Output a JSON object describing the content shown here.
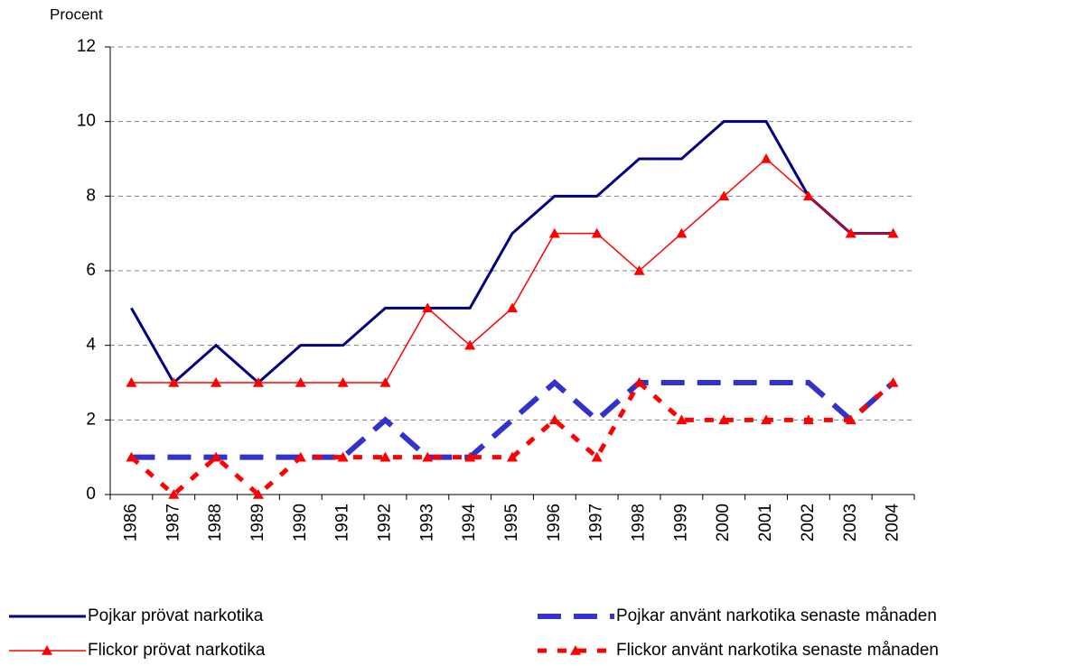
{
  "chart_data": {
    "type": "line",
    "y_label": "Procent",
    "categories": [
      "1986",
      "1987",
      "1988",
      "1989",
      "1990",
      "1991",
      "1992",
      "1993",
      "1994",
      "1995",
      "1996",
      "1997",
      "1998",
      "1999",
      "2000",
      "2001",
      "2002",
      "2003",
      "2004"
    ],
    "series": [
      {
        "name": "Pojkar prövat narkotika",
        "color": "#000080",
        "line_style": "solid",
        "width": 3,
        "marker": "none",
        "values": [
          5,
          3,
          4,
          3,
          4,
          4,
          5,
          5,
          5,
          7,
          8,
          8,
          9,
          9,
          10,
          10,
          8,
          7,
          7
        ]
      },
      {
        "name": "Flickor prövat narkotika",
        "color": "#ff0000",
        "line_style": "solid",
        "width": 1.5,
        "marker": "triangle",
        "values": [
          3,
          3,
          3,
          3,
          3,
          3,
          3,
          5,
          4,
          5,
          7,
          7,
          6,
          7,
          8,
          9,
          8,
          7,
          7
        ]
      },
      {
        "name": "Pojkar använt narkotika senaste månaden",
        "color": "#3333cc",
        "line_style": "dashed",
        "width": 6,
        "marker": "none",
        "values": [
          1,
          1,
          1,
          1,
          1,
          1,
          2,
          1,
          1,
          2,
          3,
          2,
          3,
          3,
          3,
          3,
          3,
          2,
          3
        ]
      },
      {
        "name": "Flickor använt narkotika senaste månaden",
        "color": "#ff0000",
        "line_style": "dotted",
        "width": 5,
        "marker": "triangle",
        "values": [
          1,
          0,
          1,
          0,
          1,
          1,
          1,
          1,
          1,
          1,
          2,
          1,
          3,
          2,
          2,
          2,
          2,
          2,
          3
        ]
      }
    ],
    "ylim": [
      0,
      12
    ],
    "yticks": [
      0,
      2,
      4,
      6,
      8,
      10,
      12
    ],
    "grid": true
  }
}
